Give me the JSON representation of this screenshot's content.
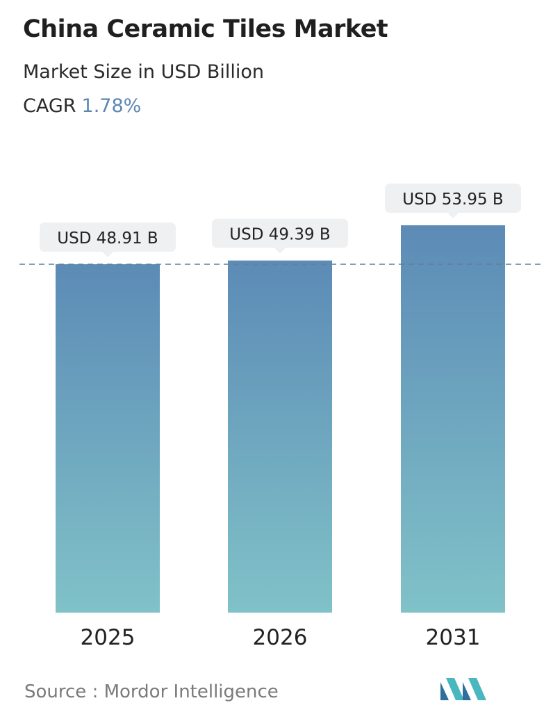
{
  "header": {
    "title": "China Ceramic Tiles Market",
    "subtitle": "Market Size in USD Billion",
    "cagr_label": "CAGR",
    "cagr_value": "1.78%"
  },
  "chart_data": {
    "type": "bar",
    "categories": [
      "2025",
      "2026",
      "2031"
    ],
    "values": [
      48.91,
      49.39,
      53.95
    ],
    "data_labels": [
      "USD 48.91 B",
      "USD 49.39 B",
      "USD 53.95 B"
    ],
    "unit": "USD Billion",
    "reference_line_value": 48.91,
    "grid": false,
    "colors": {
      "bar_top": "#5c8bb6",
      "bar_bottom": "#80c2c8",
      "label_box": "#eef0f2",
      "reference_line": "#5f7f98"
    }
  },
  "footer": {
    "source_text": "Source :  Mordor Intelligence",
    "logo_icon": "mordor-intelligence-logo-icon"
  }
}
